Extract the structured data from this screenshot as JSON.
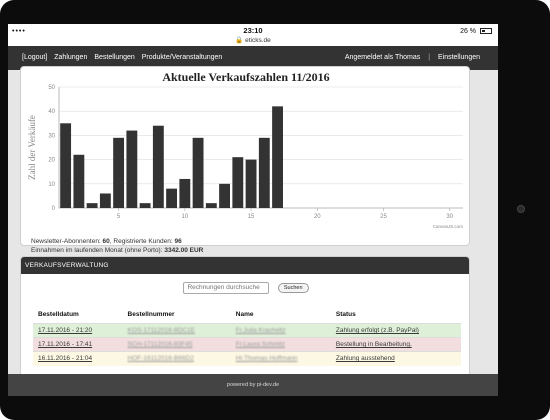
{
  "statusbar": {
    "left": "•••• ",
    "time": "23:10",
    "url": "eticks.de",
    "battery": "26 %"
  },
  "nav": {
    "items": [
      "[Logout]",
      "Zahlungen",
      "Bestellungen",
      "Produkte/Veranstaltungen"
    ],
    "user": "Angemeldet als Thomas",
    "settings": "Einstellungen"
  },
  "chart_data": {
    "type": "bar",
    "title": "Aktuelle Verkaufszahlen 11/2016",
    "ylabel": "Zahl der Verkäufe",
    "xlabel": "",
    "x": [
      1,
      2,
      3,
      4,
      5,
      6,
      7,
      8,
      9,
      10,
      11,
      12,
      13,
      14,
      15,
      16,
      17
    ],
    "values": [
      35,
      22,
      2,
      6,
      29,
      32,
      2,
      34,
      8,
      12,
      29,
      2,
      10,
      21,
      20,
      29,
      42
    ],
    "xlim": [
      0.5,
      31
    ],
    "ylim": [
      0,
      50
    ],
    "yticks": [
      0,
      10,
      20,
      30,
      40,
      50
    ],
    "xticks": [
      5,
      10,
      15,
      20,
      25,
      30
    ],
    "color": "#333333",
    "credit": "CanvasJS.com"
  },
  "stats": {
    "newsletter_label": "Newsletter-Abonnenten: ",
    "newsletter_value": "60",
    "customers_label": ", Registrierte Kunden: ",
    "customers_value": "96",
    "income_label": "Einnahmen im laufenden Monat (ohne Porto): ",
    "income_value": "3342.00 EUR"
  },
  "sales": {
    "heading": "VERKAUFSVERWALTUNG",
    "search_placeholder": "Rechnungen durchsuche",
    "search_button": "Suchen",
    "columns": [
      "Bestelldatum",
      "Bestellnummer",
      "Name",
      "Status"
    ],
    "rows": [
      {
        "date": "17.11.2016 - 21:20",
        "number": "KOS-17112016-8DC1E",
        "name": "Fr.Julia Kracheltz",
        "status": "Zahlung erfolgt (z.B. PayPal)",
        "color": "#dff0d8"
      },
      {
        "date": "17.11.2016 - 17:41",
        "number": "SCH-17112016-83F45",
        "name": "Fr.Laura Schmitz",
        "status": "Bestellung in Bearbeitung.",
        "color": "#f2dede"
      },
      {
        "date": "16.11.2016 - 21:04",
        "number": "HOF-16112016-B66D2",
        "name": "Hr.Thomas Hoffmann",
        "status": "Zahlung ausstehend",
        "color": "#fcf8e3"
      }
    ]
  },
  "footer": "powered by pi-dev.de"
}
